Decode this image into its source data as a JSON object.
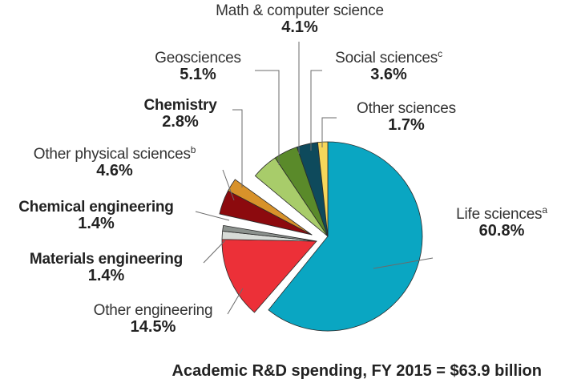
{
  "chart_data": {
    "type": "pie",
    "title": "Academic R&D spending, FY 2015 = $63.9 billion",
    "unit": "%",
    "slices": [
      {
        "label": "Life sciences",
        "footnote": "a",
        "value": 60.8,
        "display": "60.8%",
        "color": "#0aa6c2",
        "group": "sciences"
      },
      {
        "label": "Other engineering",
        "footnote": "",
        "value": 14.5,
        "display": "14.5%",
        "color": "#ec3038",
        "group": "engineering"
      },
      {
        "label": "Materials engineering",
        "footnote": "",
        "value": 1.4,
        "display": "1.4%",
        "color": "#d8dcd8",
        "group": "engineering"
      },
      {
        "label": "Chemical engineering",
        "footnote": "",
        "value": 1.4,
        "display": "1.4%",
        "color": "#8c928e",
        "group": "engineering"
      },
      {
        "label": "Other physical sciences",
        "footnote": "b",
        "value": 4.6,
        "display": "4.6%",
        "color": "#8c0a0e",
        "group": "physical"
      },
      {
        "label": "Chemistry",
        "footnote": "",
        "value": 2.8,
        "display": "2.8%",
        "color": "#d8922a",
        "group": "physical"
      },
      {
        "label": "Geosciences",
        "footnote": "",
        "value": 5.1,
        "display": "5.1%",
        "color": "#a8cc6a",
        "group": "sciences2"
      },
      {
        "label": "Math & computer science",
        "footnote": "",
        "value": 4.1,
        "display": "4.1%",
        "color": "#5a8a2a",
        "group": "sciences2"
      },
      {
        "label": "Social sciences",
        "footnote": "c",
        "value": 3.6,
        "display": "3.6%",
        "color": "#0e4a5c",
        "group": "sciences2"
      },
      {
        "label": "Other sciences",
        "footnote": "",
        "value": 1.7,
        "display": "1.7%",
        "color": "#f6d65a",
        "group": "sciences2"
      }
    ],
    "legend": "none"
  }
}
